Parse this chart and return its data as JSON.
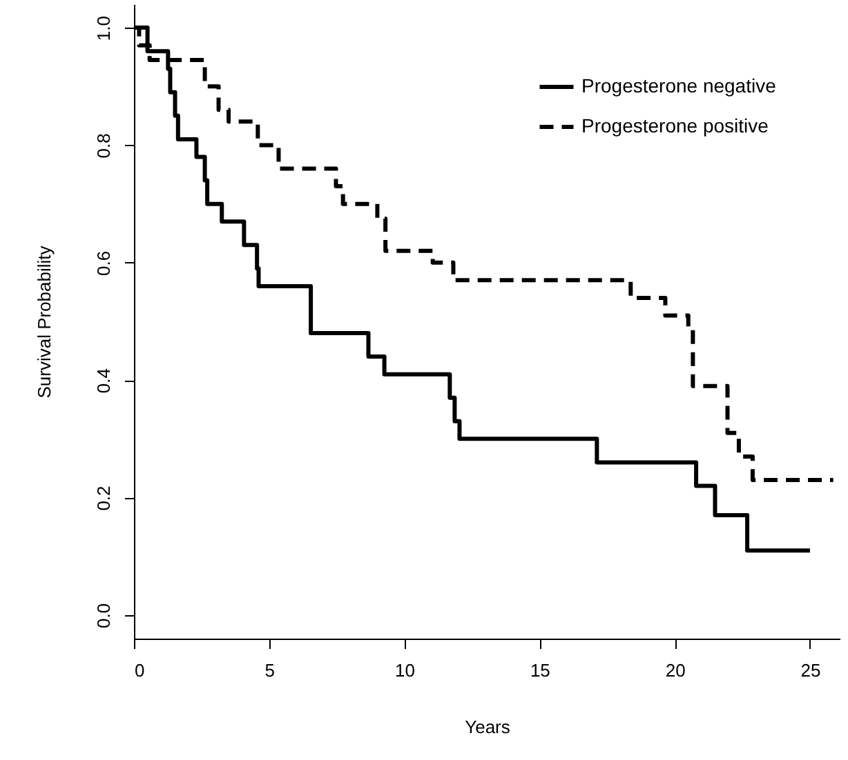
{
  "chart_data": {
    "type": "step",
    "xlabel": "Years",
    "ylabel": "Survival Probability",
    "xlim": [
      0,
      26.1
    ],
    "ylim": [
      -0.04,
      1.04
    ],
    "xticks": [
      0,
      5,
      10,
      15,
      20,
      25
    ],
    "yticks": [
      {
        "value": 0,
        "label": "0.0"
      },
      0.2,
      0.4,
      0.6,
      0.8,
      {
        "value": 1,
        "label": "1.0"
      }
    ],
    "grid": false,
    "legend": "top right",
    "marker": "none",
    "series": [
      {
        "name": "Progesterone negative",
        "color": "#000000",
        "line_style": "solid",
        "x": [
          0,
          0.5,
          1.26,
          1.34,
          1.52,
          1.63,
          2.31,
          2.62,
          2.71,
          3.25,
          4.07,
          4.55,
          4.61,
          6.54,
          8.67,
          9.26,
          11.68,
          11.86,
          12.04,
          17.12,
          20.79,
          21.49,
          22.68,
          25.0
        ],
        "values": [
          1,
          0.96,
          0.93,
          0.89,
          0.85,
          0.81,
          0.78,
          0.74,
          0.7,
          0.67,
          0.63,
          0.59,
          0.56,
          0.48,
          0.44,
          0.41,
          0.37,
          0.33,
          0.3,
          0.26,
          0.22,
          0.17,
          0.11,
          0.11
        ]
      },
      {
        "name": "Progesterone positive",
        "color": "#000000",
        "line_style": "dashed",
        "x": [
          0,
          0.19,
          0.58,
          2.62,
          3.13,
          3.5,
          4.58,
          5.35,
          7.47,
          7.73,
          9.0,
          9.3,
          11.05,
          11.81,
          18.37,
          19.65,
          20.5,
          20.67,
          21.95,
          22.37,
          22.88,
          25.86
        ],
        "values": [
          1,
          0.97,
          0.945,
          0.9,
          0.86,
          0.84,
          0.8,
          0.76,
          0.73,
          0.7,
          0.675,
          0.62,
          0.6,
          0.57,
          0.54,
          0.51,
          0.49,
          0.39,
          0.31,
          0.27,
          0.23,
          0.23
        ]
      }
    ]
  }
}
